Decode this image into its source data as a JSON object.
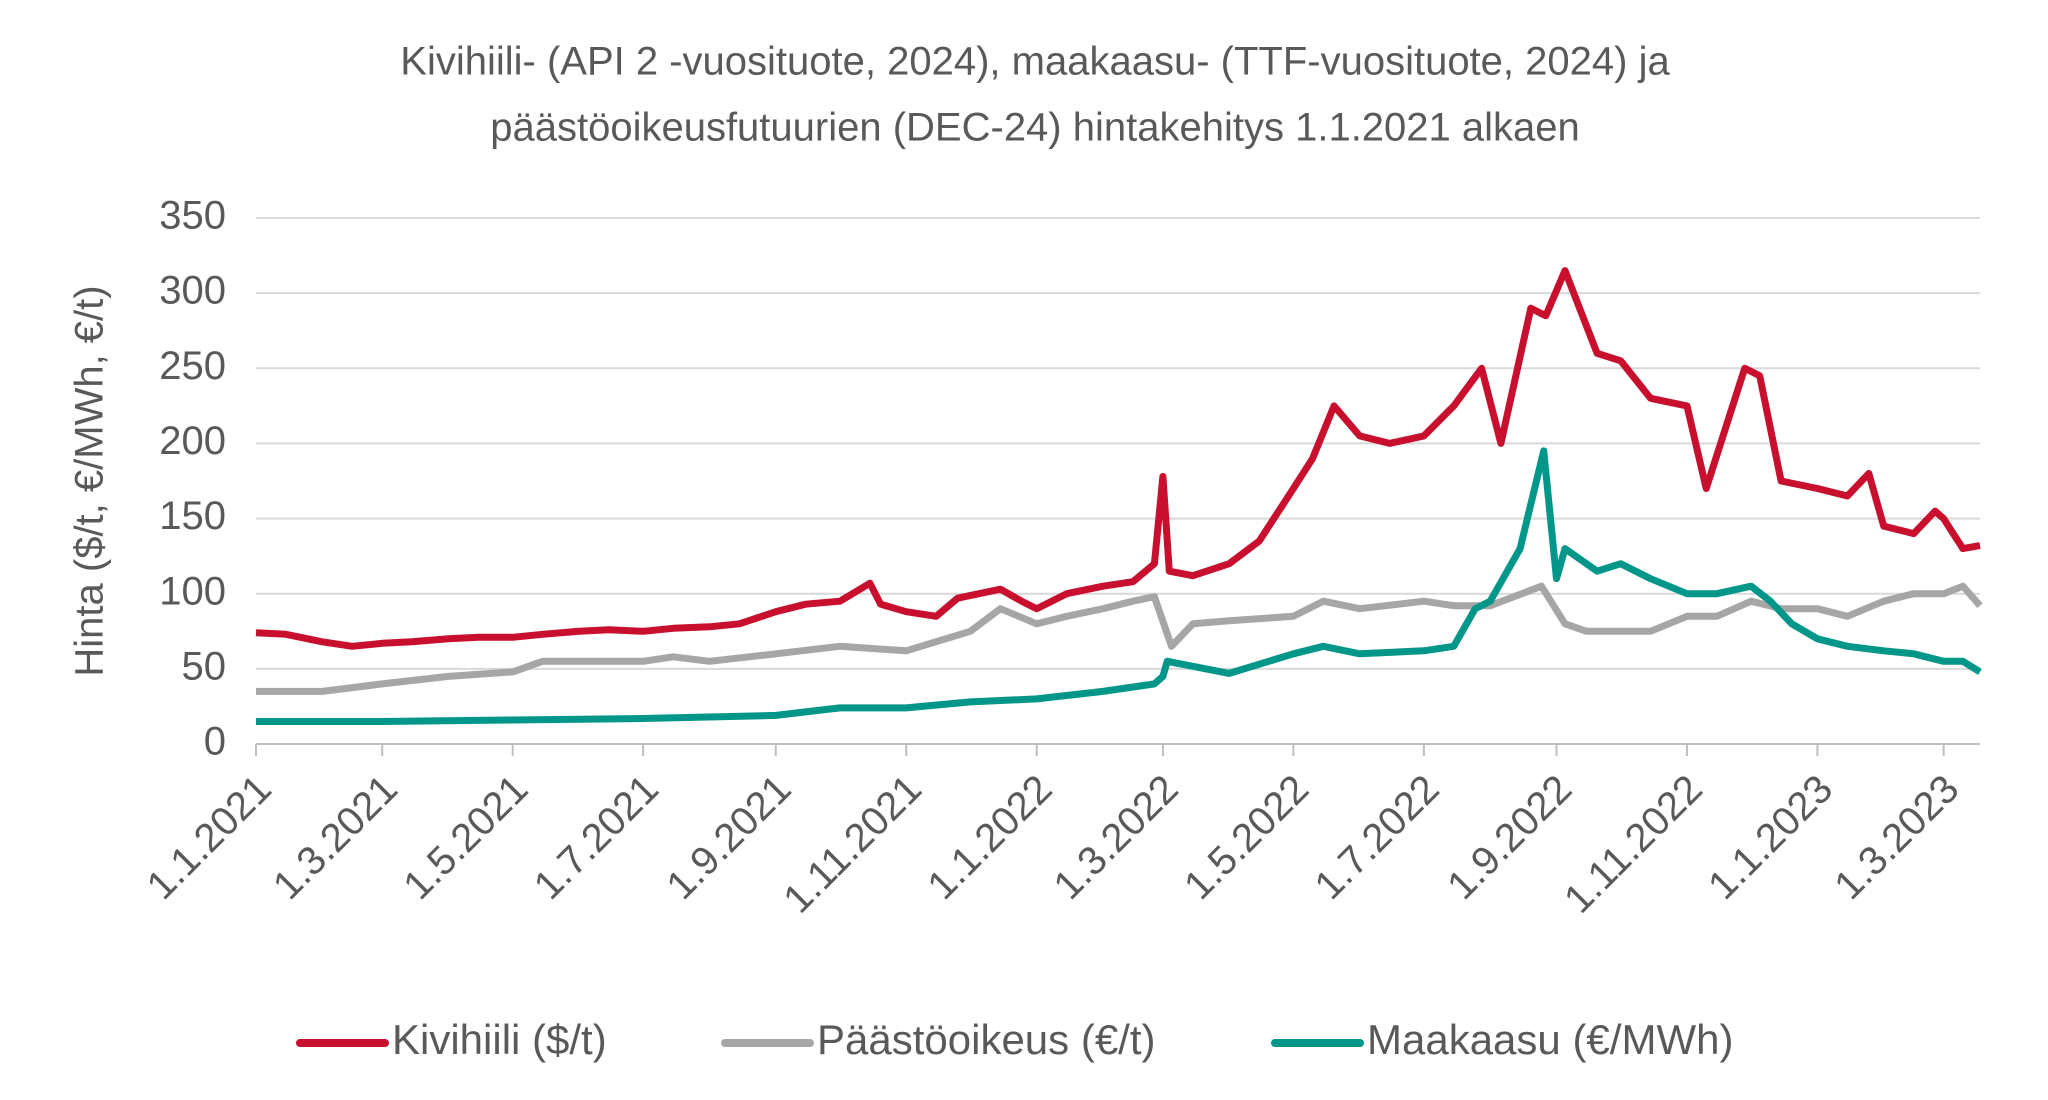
{
  "chart_data": {
    "type": "line",
    "title": [
      "Kivihiili- (API 2 -vuosituote, 2024), maakaasu- (TTF-vuosituote, 2024) ja",
      "päästöoikeusfutuurien (DEC-24) hintakehitys 1.1.2021 alkaen"
    ],
    "y_label": "Hinta ($/t, €/MWh, €/t)",
    "xlim": [
      "1.1.2021",
      "18.3.2023"
    ],
    "xticks": [
      "1.1.2021",
      "1.3.2021",
      "1.5.2021",
      "1.7.2021",
      "1.9.2021",
      "1.11.2021",
      "1.1.2022",
      "1.3.2022",
      "1.5.2022",
      "1.7.2022",
      "1.9.2022",
      "1.11.2022",
      "1.1.2023",
      "1.3.2023"
    ],
    "ylim": [
      0,
      350
    ],
    "yticks": [
      0,
      50,
      100,
      150,
      200,
      250,
      300,
      350
    ],
    "grid": true,
    "legend": "bottom",
    "series": [
      {
        "name": "Kivihiili ($/t)",
        "color": "#c8102e",
        "x": [
          "1.1.2021",
          "15.1.2021",
          "1.2.2021",
          "15.2.2021",
          "1.3.2021",
          "15.3.2021",
          "1.4.2021",
          "15.4.2021",
          "1.5.2021",
          "15.5.2021",
          "1.6.2021",
          "15.6.2021",
          "1.7.2021",
          "15.7.2021",
          "1.8.2021",
          "15.8.2021",
          "1.9.2021",
          "15.9.2021",
          "1.10.2021",
          "15.10.2021",
          "20.10.2021",
          "1.11.2021",
          "15.11.2021",
          "25.11.2021",
          "5.12.2021",
          "15.12.2021",
          "25.12.2021",
          "1.1.2022",
          "15.1.2022",
          "1.2.2022",
          "15.2.2022",
          "25.2.2022",
          "1.3.2022",
          "4.3.2022",
          "15.3.2022",
          "1.4.2022",
          "15.4.2022",
          "1.5.2022",
          "10.5.2022",
          "20.5.2022",
          "1.6.2022",
          "15.6.2022",
          "1.7.2022",
          "15.7.2022",
          "28.7.2022",
          "6.8.2022",
          "20.8.2022",
          "27.8.2022",
          "5.9.2022",
          "20.9.2022",
          "1.10.2022",
          "15.10.2022",
          "1.11.2022",
          "10.11.2022",
          "28.11.2022",
          "5.12.2022",
          "15.12.2022",
          "1.1.2023",
          "15.1.2023",
          "25.1.2023",
          "1.2.2023",
          "15.2.2023",
          "25.2.2023",
          "1.3.2023",
          "10.3.2023",
          "18.3.2023"
        ],
        "values": [
          74,
          73,
          68,
          65,
          67,
          68,
          70,
          71,
          71,
          73,
          75,
          76,
          75,
          77,
          78,
          80,
          88,
          93,
          95,
          107,
          93,
          88,
          85,
          97,
          100,
          103,
          95,
          90,
          100,
          105,
          108,
          120,
          178,
          115,
          112,
          120,
          135,
          170,
          190,
          225,
          205,
          200,
          205,
          225,
          250,
          200,
          290,
          285,
          315,
          260,
          255,
          230,
          225,
          170,
          250,
          245,
          175,
          170,
          165,
          180,
          145,
          140,
          155,
          150,
          130,
          132
        ]
      },
      {
        "name": "Päästöoikeus (€/t)",
        "color": "#a6a6a6",
        "x": [
          "1.1.2021",
          "1.2.2021",
          "1.3.2021",
          "1.4.2021",
          "1.5.2021",
          "15.5.2021",
          "1.6.2021",
          "1.7.2021",
          "15.7.2021",
          "1.8.2021",
          "1.9.2021",
          "1.10.2021",
          "1.11.2021",
          "1.12.2021",
          "15.12.2021",
          "1.1.2022",
          "15.1.2022",
          "1.2.2022",
          "15.2.2022",
          "25.2.2022",
          "5.3.2022",
          "15.3.2022",
          "1.4.2022",
          "1.5.2022",
          "15.5.2022",
          "1.6.2022",
          "1.7.2022",
          "15.7.2022",
          "1.8.2022",
          "25.8.2022",
          "5.9.2022",
          "15.9.2022",
          "1.10.2022",
          "15.10.2022",
          "1.11.2022",
          "15.11.2022",
          "1.12.2022",
          "15.12.2022",
          "1.1.2023",
          "15.1.2023",
          "1.2.2023",
          "15.2.2023",
          "1.3.2023",
          "10.3.2023",
          "18.3.2023"
        ],
        "values": [
          35,
          35,
          40,
          45,
          48,
          55,
          55,
          55,
          58,
          55,
          60,
          65,
          62,
          75,
          90,
          80,
          85,
          90,
          95,
          98,
          65,
          80,
          82,
          85,
          95,
          90,
          95,
          92,
          92,
          105,
          80,
          75,
          75,
          75,
          85,
          85,
          95,
          90,
          90,
          85,
          95,
          100,
          100,
          105,
          92
        ]
      },
      {
        "name": "Maakaasu (€/MWh)",
        "color": "#00968a",
        "x": [
          "1.1.2021",
          "1.3.2021",
          "1.5.2021",
          "1.7.2021",
          "1.9.2021",
          "1.10.2021",
          "1.11.2021",
          "1.12.2021",
          "1.1.2022",
          "1.2.2022",
          "25.2.2022",
          "1.3.2022",
          "3.3.2022",
          "1.4.2022",
          "1.5.2022",
          "15.5.2022",
          "1.6.2022",
          "1.7.2022",
          "15.7.2022",
          "25.7.2022",
          "1.8.2022",
          "15.8.2022",
          "26.8.2022",
          "1.9.2022",
          "5.9.2022",
          "20.9.2022",
          "1.10.2022",
          "15.10.2022",
          "1.11.2022",
          "15.11.2022",
          "1.12.2022",
          "10.12.2022",
          "20.12.2022",
          "1.1.2023",
          "15.1.2023",
          "1.2.2023",
          "15.2.2023",
          "1.3.2023",
          "10.3.2023",
          "18.3.2023"
        ],
        "values": [
          15,
          15,
          16,
          17,
          19,
          24,
          24,
          28,
          30,
          35,
          40,
          45,
          55,
          47,
          60,
          65,
          60,
          62,
          65,
          90,
          95,
          130,
          195,
          110,
          130,
          115,
          120,
          110,
          100,
          100,
          105,
          95,
          80,
          70,
          65,
          62,
          60,
          55,
          55,
          48
        ]
      }
    ]
  }
}
